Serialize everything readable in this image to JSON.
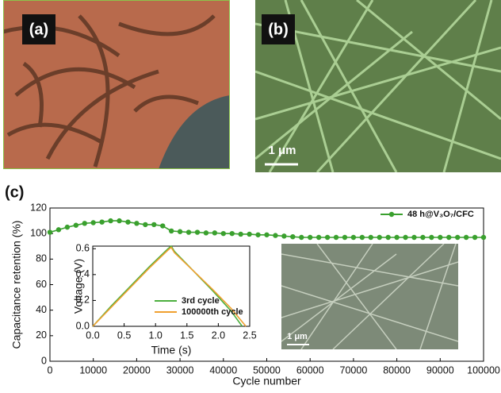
{
  "panels": [
    {
      "label": "(a)"
    },
    {
      "label": "(b)",
      "scale_bar": "1 μm"
    }
  ],
  "chart_data": [
    {
      "type": "line",
      "panel_label": "(c)",
      "xlabel": "Cycle number",
      "ylabel": "Capacitance retention (%)",
      "xlim": [
        0,
        100000
      ],
      "ylim": [
        0,
        120
      ],
      "xticks": [
        0,
        10000,
        20000,
        30000,
        40000,
        50000,
        60000,
        70000,
        80000,
        90000,
        100000
      ],
      "yticks": [
        0,
        20,
        40,
        60,
        80,
        100,
        120
      ],
      "legend": "upper right",
      "inset_image_label": "1 μm",
      "x": [
        0,
        2000,
        4000,
        6000,
        8000,
        10000,
        12000,
        14000,
        16000,
        18000,
        20000,
        22000,
        24000,
        26000,
        28000,
        30000,
        32000,
        34000,
        36000,
        38000,
        40000,
        42000,
        44000,
        46000,
        48000,
        50000,
        52000,
        54000,
        56000,
        58000,
        60000,
        62000,
        64000,
        66000,
        68000,
        70000,
        72000,
        74000,
        76000,
        78000,
        80000,
        82000,
        84000,
        86000,
        88000,
        90000,
        92000,
        94000,
        96000,
        98000,
        100000
      ],
      "series": [
        {
          "name": "48 h@V₃O₇/CFC",
          "color": "#3aa02e",
          "values": [
            101,
            103,
            105,
            106.5,
            108,
            108.5,
            109,
            110,
            110,
            109,
            108,
            107,
            107,
            106,
            102,
            101.5,
            101,
            101,
            100.5,
            100.5,
            100,
            100,
            99.5,
            99.5,
            99,
            99,
            98.5,
            98,
            97.5,
            97,
            97,
            97,
            97,
            97,
            97,
            97,
            97,
            97,
            97,
            97,
            97,
            97,
            97,
            97,
            97,
            97,
            97,
            97,
            97,
            97,
            97
          ]
        }
      ]
    },
    {
      "type": "line",
      "xlabel": "Time (s)",
      "ylabel": "Voltage (V)",
      "xlim": [
        0,
        2.5
      ],
      "ylim": [
        0,
        0.62
      ],
      "xticks": [
        {
          "value": 0,
          "label": "0.0"
        },
        0.5,
        {
          "value": 1,
          "label": "1.0"
        },
        1.5,
        {
          "value": 2,
          "label": "2.0"
        },
        2.5
      ],
      "yticks": [
        {
          "value": 0,
          "label": "0.0"
        },
        0.2,
        0.4,
        0.6
      ],
      "series": [
        {
          "name": "3rd cycle",
          "color": "#4caf3e",
          "x": [
            0,
            0.3,
            0.6,
            0.9,
            1.2,
            1.25,
            1.3,
            1.6,
            1.9,
            2.2,
            2.38
          ],
          "values": [
            0,
            0.16,
            0.31,
            0.46,
            0.6,
            0.62,
            0.58,
            0.43,
            0.28,
            0.12,
            0
          ]
        },
        {
          "name": "100000th cycle",
          "color": "#f0a030",
          "x": [
            0,
            0.3,
            0.6,
            0.9,
            1.2,
            1.25,
            1.3,
            1.6,
            1.9,
            2.2,
            2.44
          ],
          "values": [
            0,
            0.15,
            0.3,
            0.45,
            0.59,
            0.61,
            0.57,
            0.43,
            0.29,
            0.14,
            0
          ]
        }
      ]
    }
  ]
}
